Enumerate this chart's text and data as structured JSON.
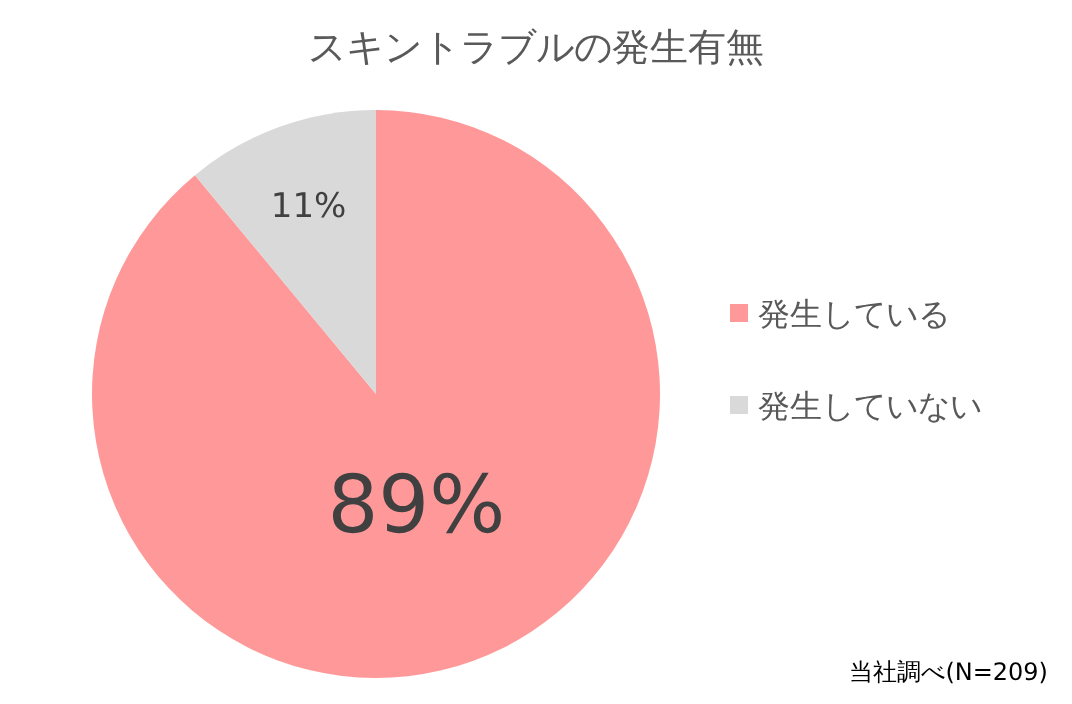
{
  "chart_data": {
    "type": "pie",
    "title": "スキントラブルの発生有無",
    "categories": [
      "発生している",
      "発生していない"
    ],
    "values": [
      89,
      11
    ],
    "colors": [
      "#ff9999",
      "#d9d9d9"
    ],
    "value_labels": [
      "89%",
      "11%"
    ],
    "legend": "right",
    "annotations": [
      "当社調べ(N=209)"
    ]
  }
}
